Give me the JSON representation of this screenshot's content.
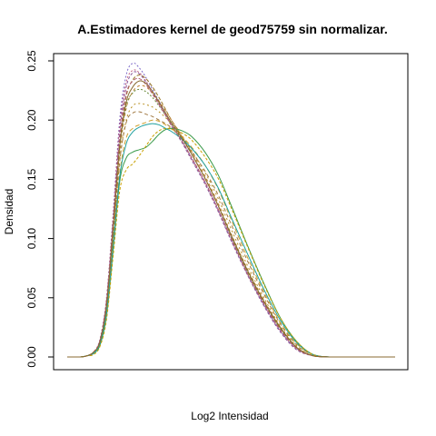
{
  "chart_data": {
    "type": "line",
    "title": "A.Estimadores kernel de geod75759 sin normalizar.",
    "xlabel": "Log2 Intensidad",
    "ylabel": "Densidad",
    "ylim": [
      0,
      0.25
    ],
    "xlim": [
      0,
      100
    ],
    "yticks": [
      0.0,
      0.05,
      0.1,
      0.15,
      0.2,
      0.25
    ],
    "ytick_labels": [
      "0.00",
      "0.05",
      "0.10",
      "0.15",
      "0.20",
      "0.25"
    ],
    "x_ticks_shown": false,
    "grid": false,
    "legend": "none",
    "x": [
      0,
      4,
      6,
      8,
      10,
      12,
      14,
      16,
      18,
      20,
      22,
      24,
      26,
      28,
      30,
      32,
      35,
      38,
      42,
      46,
      50,
      55,
      60,
      65,
      70,
      75,
      80,
      85,
      90,
      95,
      100
    ],
    "series": [
      {
        "color": "#7b68c8",
        "dash": "2,2",
        "values": [
          0,
          0,
          0.001,
          0.004,
          0.015,
          0.05,
          0.12,
          0.2,
          0.238,
          0.248,
          0.244,
          0.236,
          0.226,
          0.216,
          0.206,
          0.196,
          0.183,
          0.168,
          0.148,
          0.125,
          0.1,
          0.07,
          0.044,
          0.022,
          0.007,
          0.001,
          0,
          0,
          0,
          0,
          0
        ]
      },
      {
        "color": "#c06080",
        "dash": "2,2",
        "values": [
          0,
          0,
          0.001,
          0.004,
          0.015,
          0.05,
          0.12,
          0.195,
          0.232,
          0.242,
          0.24,
          0.233,
          0.224,
          0.215,
          0.205,
          0.195,
          0.182,
          0.167,
          0.147,
          0.124,
          0.099,
          0.07,
          0.044,
          0.022,
          0.007,
          0.001,
          0,
          0,
          0,
          0,
          0
        ]
      },
      {
        "color": "#8a5a9a",
        "dash": "3,2",
        "values": [
          0,
          0,
          0.001,
          0.004,
          0.014,
          0.048,
          0.115,
          0.19,
          0.228,
          0.24,
          0.239,
          0.232,
          0.223,
          0.214,
          0.204,
          0.194,
          0.181,
          0.166,
          0.146,
          0.123,
          0.098,
          0.069,
          0.043,
          0.021,
          0.006,
          0.001,
          0,
          0,
          0,
          0,
          0
        ]
      },
      {
        "color": "#9a7a2a",
        "dash": "4,2",
        "values": [
          0,
          0,
          0.001,
          0.004,
          0.013,
          0.045,
          0.11,
          0.18,
          0.22,
          0.234,
          0.238,
          0.235,
          0.228,
          0.219,
          0.209,
          0.199,
          0.186,
          0.171,
          0.151,
          0.128,
          0.102,
          0.072,
          0.046,
          0.024,
          0.008,
          0.001,
          0,
          0,
          0,
          0,
          0
        ]
      },
      {
        "color": "#c08030",
        "dash": "3,3",
        "values": [
          0,
          0,
          0.001,
          0.004,
          0.013,
          0.043,
          0.105,
          0.172,
          0.21,
          0.224,
          0.229,
          0.228,
          0.223,
          0.216,
          0.208,
          0.199,
          0.187,
          0.173,
          0.153,
          0.13,
          0.104,
          0.074,
          0.048,
          0.025,
          0.008,
          0.001,
          0,
          0,
          0,
          0,
          0
        ]
      },
      {
        "color": "#b89020",
        "dash": "2,3",
        "values": [
          0,
          0,
          0.001,
          0.003,
          0.012,
          0.04,
          0.1,
          0.165,
          0.2,
          0.212,
          0.214,
          0.213,
          0.211,
          0.207,
          0.202,
          0.196,
          0.186,
          0.174,
          0.156,
          0.134,
          0.108,
          0.077,
          0.05,
          0.026,
          0.009,
          0.001,
          0,
          0,
          0,
          0,
          0
        ]
      },
      {
        "color": "#a07840",
        "dash": "4,3",
        "values": [
          0,
          0,
          0.001,
          0.003,
          0.012,
          0.04,
          0.1,
          0.165,
          0.198,
          0.206,
          0.207,
          0.205,
          0.203,
          0.2,
          0.197,
          0.193,
          0.184,
          0.173,
          0.157,
          0.137,
          0.112,
          0.081,
          0.053,
          0.028,
          0.01,
          0.002,
          0,
          0,
          0,
          0,
          0
        ]
      },
      {
        "color": "#d0a030",
        "dash": "5,3",
        "values": [
          0,
          0,
          0.001,
          0.003,
          0.011,
          0.038,
          0.095,
          0.155,
          0.185,
          0.193,
          0.196,
          0.198,
          0.2,
          0.199,
          0.196,
          0.192,
          0.186,
          0.177,
          0.162,
          0.142,
          0.116,
          0.084,
          0.055,
          0.029,
          0.011,
          0.002,
          0,
          0,
          0,
          0,
          0
        ]
      },
      {
        "color": "#3a9a4a",
        "dash": "",
        "values": [
          0,
          0,
          0.001,
          0.003,
          0.01,
          0.035,
          0.09,
          0.148,
          0.168,
          0.173,
          0.175,
          0.177,
          0.182,
          0.188,
          0.192,
          0.193,
          0.191,
          0.186,
          0.173,
          0.154,
          0.128,
          0.094,
          0.062,
          0.033,
          0.013,
          0.002,
          0,
          0,
          0,
          0,
          0
        ]
      },
      {
        "color": "#20a0a0",
        "dash": "",
        "values": [
          0,
          0,
          0.001,
          0.003,
          0.011,
          0.037,
          0.093,
          0.152,
          0.18,
          0.19,
          0.194,
          0.196,
          0.197,
          0.196,
          0.193,
          0.19,
          0.184,
          0.176,
          0.162,
          0.143,
          0.118,
          0.087,
          0.057,
          0.031,
          0.012,
          0.002,
          0,
          0,
          0,
          0,
          0
        ]
      },
      {
        "color": "#c8a000",
        "dash": "3,2",
        "values": [
          0,
          0,
          0.001,
          0.002,
          0.009,
          0.032,
          0.085,
          0.14,
          0.158,
          0.163,
          0.17,
          0.178,
          0.186,
          0.191,
          0.193,
          0.192,
          0.189,
          0.183,
          0.169,
          0.151,
          0.126,
          0.093,
          0.061,
          0.033,
          0.013,
          0.002,
          0,
          0,
          0,
          0,
          0
        ]
      },
      {
        "color": "#6a8a3a",
        "dash": "2,2",
        "values": [
          0,
          0,
          0.001,
          0.004,
          0.013,
          0.044,
          0.108,
          0.176,
          0.212,
          0.223,
          0.226,
          0.224,
          0.219,
          0.212,
          0.204,
          0.196,
          0.184,
          0.171,
          0.151,
          0.128,
          0.102,
          0.072,
          0.046,
          0.024,
          0.008,
          0.001,
          0,
          0,
          0,
          0,
          0
        ]
      },
      {
        "color": "#b05a70",
        "dash": "4,2",
        "values": [
          0,
          0,
          0.001,
          0.004,
          0.014,
          0.046,
          0.112,
          0.184,
          0.222,
          0.233,
          0.235,
          0.23,
          0.222,
          0.213,
          0.204,
          0.195,
          0.182,
          0.168,
          0.148,
          0.125,
          0.1,
          0.07,
          0.045,
          0.023,
          0.007,
          0.001,
          0,
          0,
          0,
          0,
          0
        ]
      },
      {
        "color": "#8a6a30",
        "dash": "",
        "values": [
          0,
          0,
          0.001,
          0.004,
          0.013,
          0.044,
          0.108,
          0.178,
          0.215,
          0.228,
          0.233,
          0.231,
          0.224,
          0.215,
          0.206,
          0.197,
          0.185,
          0.171,
          0.151,
          0.128,
          0.103,
          0.073,
          0.047,
          0.025,
          0.008,
          0.001,
          0,
          0,
          0,
          0,
          0
        ]
      }
    ]
  }
}
